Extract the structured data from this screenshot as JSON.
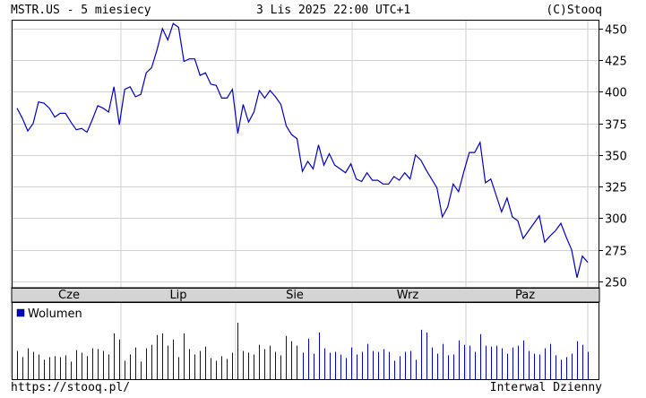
{
  "header": {
    "left": "MSTR.US - 5 miesiecy",
    "center": "3 Lis 2025 22:00 UTC+1",
    "right": "(C)Stooq"
  },
  "footer": {
    "left": "https://stooq.pl/",
    "right": "Interwal Dzienny"
  },
  "colors": {
    "price_line": "#0000cc",
    "volume_bars": "#0000cc",
    "grid": "#d0d0d0",
    "axis_band": "#d4d4d4",
    "frame": "#000000"
  },
  "chart_data": [
    {
      "type": "line",
      "name": "price",
      "ylim": [
        245,
        457
      ],
      "yticks": [
        250,
        275,
        300,
        325,
        350,
        375,
        400,
        425,
        450
      ],
      "xtick_labels": [
        "Cze",
        "Lip",
        "Sie",
        "Wrz",
        "Paz"
      ],
      "grid": true,
      "values": [
        387,
        379,
        369,
        375,
        392,
        391,
        387,
        380,
        383,
        383,
        376,
        370,
        371,
        368,
        378,
        389,
        387,
        384,
        404,
        374,
        402,
        404,
        396,
        398,
        415,
        419,
        433,
        450,
        441,
        454,
        451,
        424,
        426,
        426,
        413,
        415,
        406,
        405,
        395,
        395,
        402,
        367,
        390,
        376,
        384,
        401,
        395,
        401,
        396,
        390,
        373,
        366,
        363,
        337,
        345,
        339,
        358,
        342,
        351,
        342,
        339,
        336,
        343,
        331,
        329,
        336,
        330,
        330,
        327,
        327,
        333,
        330,
        336,
        331,
        350,
        346,
        338,
        331,
        324,
        301,
        309,
        327,
        321,
        337,
        352,
        352,
        360,
        328,
        331,
        318,
        305,
        316,
        301,
        298,
        284,
        290,
        296,
        302,
        281,
        286,
        290,
        296,
        285,
        275,
        253,
        270,
        265
      ]
    },
    {
      "type": "bar",
      "name": "Wolumen",
      "legend": "Wolumen",
      "values": [
        32,
        25,
        35,
        31,
        28,
        22,
        25,
        26,
        25,
        27,
        20,
        33,
        30,
        26,
        35,
        34,
        32,
        28,
        52,
        45,
        21,
        28,
        36,
        20,
        35,
        39,
        50,
        52,
        38,
        45,
        25,
        52,
        34,
        28,
        32,
        37,
        24,
        21,
        26,
        23,
        30,
        64,
        32,
        30,
        28,
        39,
        34,
        38,
        31,
        27,
        49,
        43,
        38,
        30,
        46,
        29,
        53,
        35,
        30,
        31,
        28,
        24,
        36,
        28,
        31,
        40,
        32,
        31,
        34,
        31,
        21,
        26,
        31,
        32,
        22,
        56,
        53,
        36,
        29,
        40,
        27,
        28,
        44,
        39,
        38,
        31,
        51,
        38,
        37,
        38,
        35,
        29,
        36,
        38,
        44,
        32,
        29,
        28,
        35,
        40,
        27,
        22,
        25,
        29,
        43,
        39,
        31
      ]
    }
  ]
}
